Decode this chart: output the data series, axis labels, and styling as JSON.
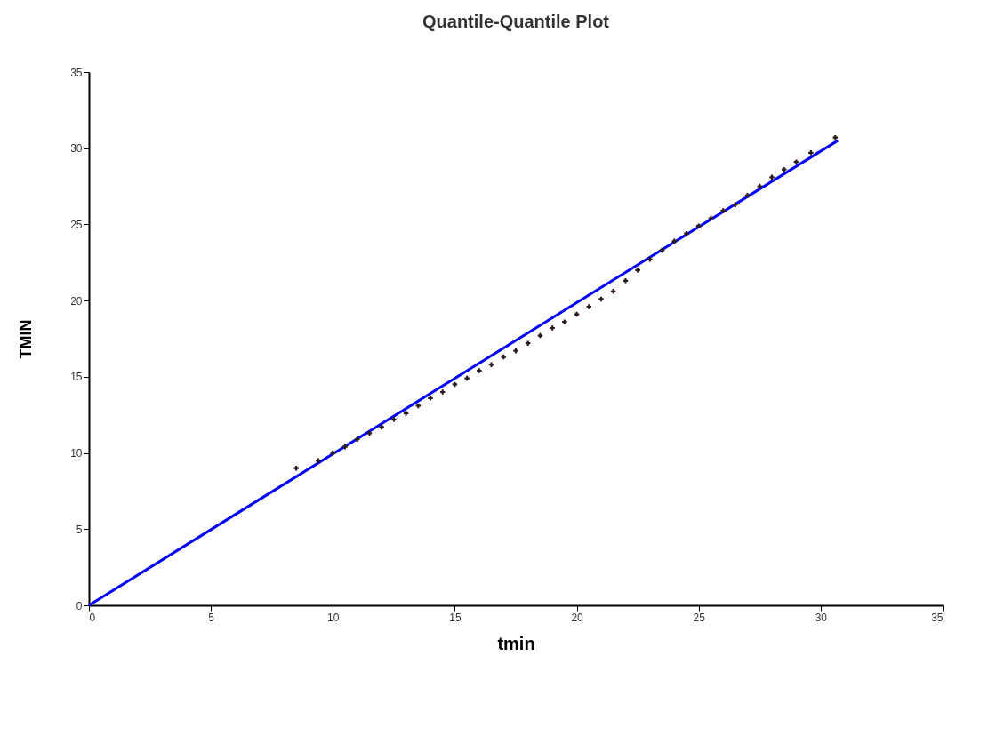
{
  "chart_data": {
    "type": "scatter",
    "title": "Quantile-Quantile Plot",
    "xlabel": "tmin",
    "ylabel": "TMIN",
    "xlim": [
      0,
      35
    ],
    "ylim": [
      0,
      35
    ],
    "xticks": [
      0,
      5,
      10,
      15,
      20,
      25,
      30,
      35
    ],
    "yticks": [
      0,
      5,
      10,
      15,
      20,
      25,
      30,
      35
    ],
    "grid": false,
    "marker": "cross",
    "series": [
      {
        "color": "#2a1a1a",
        "x": [
          8.5,
          9.4,
          10.0,
          10.5,
          11.0,
          11.5,
          12.0,
          12.5,
          13.0,
          13.5,
          14.0,
          14.5,
          15.0,
          15.5,
          16.0,
          16.5,
          17.0,
          17.5,
          18.0,
          18.5,
          19.0,
          19.5,
          20.0,
          20.5,
          21.0,
          21.5,
          22.0,
          22.5,
          23.0,
          23.5,
          24.0,
          24.5,
          25.0,
          25.5,
          26.0,
          26.5,
          27.0,
          27.5,
          28.0,
          28.5,
          29.0,
          29.6,
          30.6
        ],
        "values": [
          9.0,
          9.5,
          10.0,
          10.4,
          10.9,
          11.3,
          11.7,
          12.2,
          12.6,
          13.1,
          13.6,
          14.0,
          14.5,
          14.9,
          15.4,
          15.8,
          16.3,
          16.7,
          17.2,
          17.7,
          18.2,
          18.6,
          19.1,
          19.6,
          20.1,
          20.6,
          21.3,
          22.0,
          22.7,
          23.3,
          23.9,
          24.4,
          24.9,
          25.4,
          25.9,
          26.3,
          26.9,
          27.5,
          28.1,
          28.6,
          29.1,
          29.7,
          30.7
        ]
      },
      {
        "type": "line",
        "marker": "none",
        "line_style": "solid",
        "color": "#0000ff",
        "x": [
          0,
          30.7
        ],
        "values": [
          0,
          30.5
        ]
      }
    ]
  }
}
